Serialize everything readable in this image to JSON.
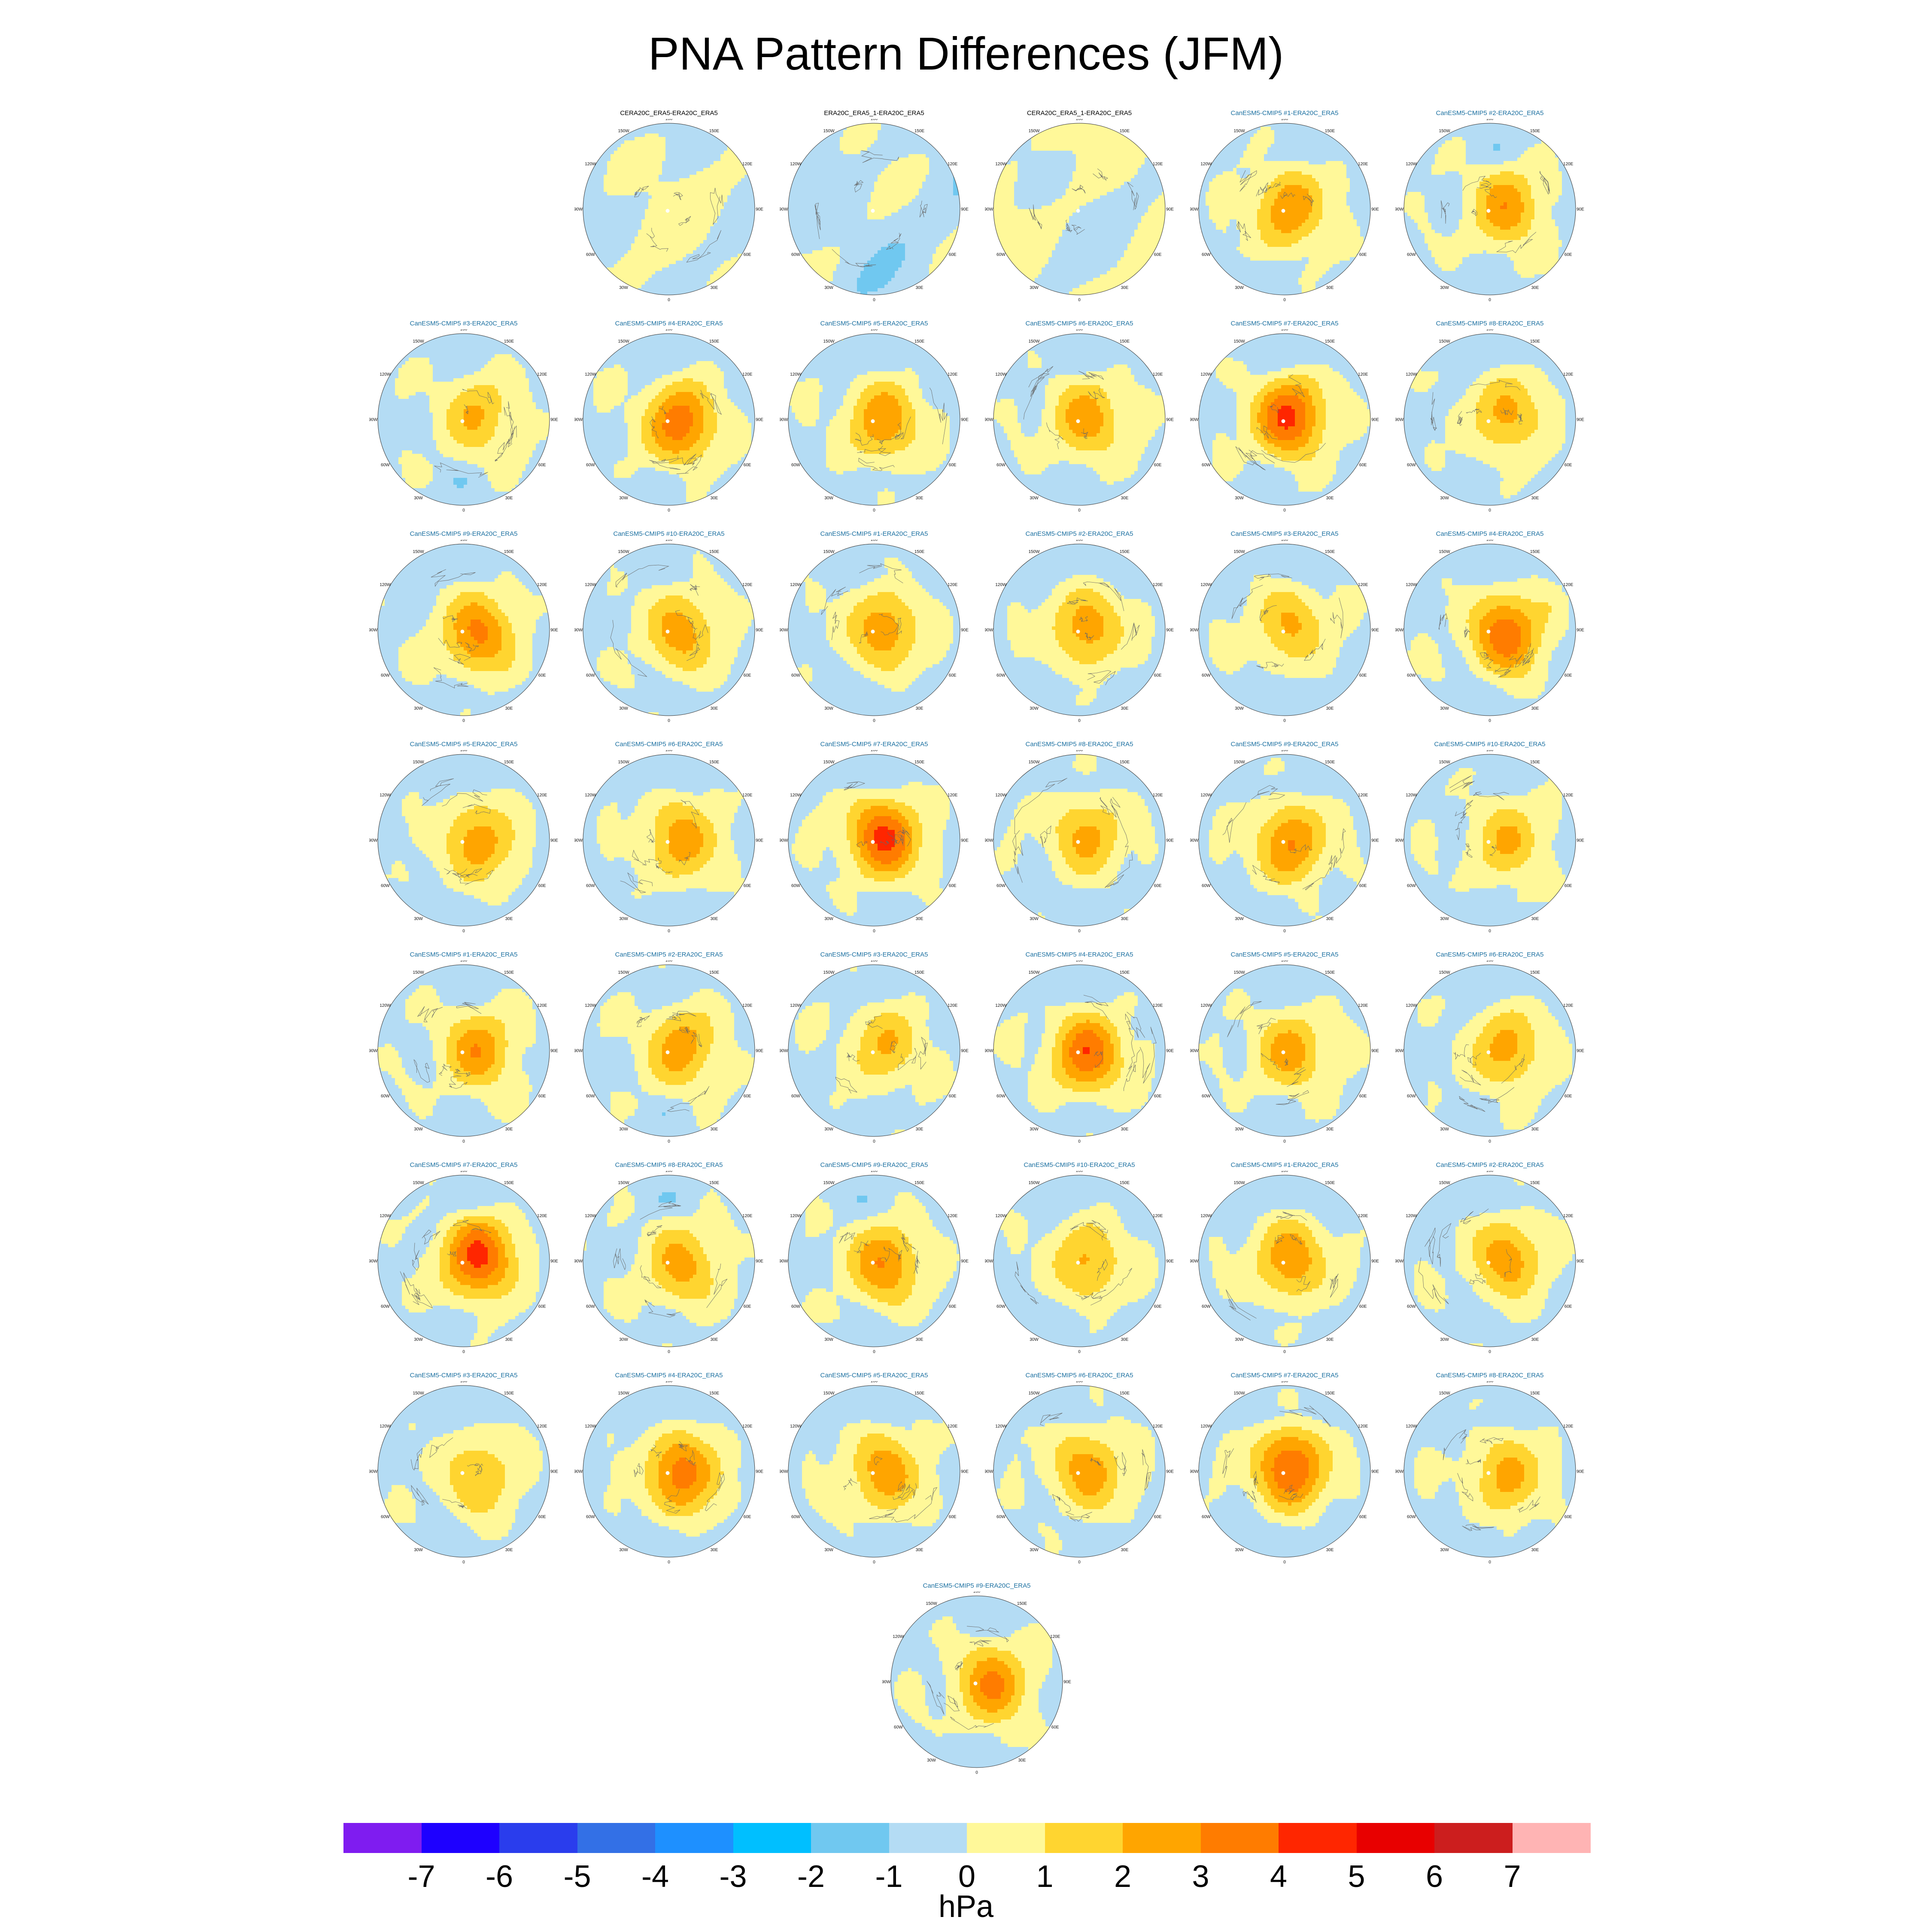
{
  "title": "PNA Pattern Differences (JFM)",
  "colors": {
    "reference_title": "#000000",
    "model_title": "#1a6fa0"
  },
  "longitude_labels": [
    "180",
    "150E",
    "120E",
    "90E",
    "60E",
    "30E",
    "0",
    "30W",
    "60W",
    "90W",
    "120W",
    "150W"
  ],
  "panels": [
    {
      "title": "CERA20C_ERA5-ERA20C_ERA5",
      "type": "reference",
      "row": 0,
      "col": 1,
      "amp": 0.4,
      "field": 0
    },
    {
      "title": "ERA20C_ERA5_1-ERA20C_ERA5",
      "type": "reference",
      "row": 0,
      "col": 2,
      "amp": 0.4,
      "field": 1
    },
    {
      "title": "CERA20C_ERA5_1-ERA20C_ERA5",
      "type": "reference",
      "row": 0,
      "col": 3,
      "amp": 0.4,
      "field": 2
    },
    {
      "title": "CanESM5-CMIP5 #1-ERA20C_ERA5",
      "type": "model",
      "row": 0,
      "col": 4,
      "amp": 3.2,
      "field": 3
    },
    {
      "title": "CanESM5-CMIP5 #2-ERA20C_ERA5",
      "type": "model",
      "row": 0,
      "col": 5,
      "amp": 3.0,
      "field": 4
    },
    {
      "title": "CanESM5-CMIP5 #3-ERA20C_ERA5",
      "type": "model",
      "row": 1,
      "col": 0,
      "amp": 2.4,
      "field": 5
    },
    {
      "title": "CanESM5-CMIP5 #4-ERA20C_ERA5",
      "type": "model",
      "row": 1,
      "col": 1,
      "amp": 4.0,
      "field": 6
    },
    {
      "title": "CanESM5-CMIP5 #5-ERA20C_ERA5",
      "type": "model",
      "row": 1,
      "col": 2,
      "amp": 3.2,
      "field": 7
    },
    {
      "title": "CanESM5-CMIP5 #6-ERA20C_ERA5",
      "type": "model",
      "row": 1,
      "col": 3,
      "amp": 2.9,
      "field": 8
    },
    {
      "title": "CanESM5-CMIP5 #7-ERA20C_ERA5",
      "type": "model",
      "row": 1,
      "col": 4,
      "amp": 4.6,
      "field": 9
    },
    {
      "title": "CanESM5-CMIP5 #8-ERA20C_ERA5",
      "type": "model",
      "row": 1,
      "col": 5,
      "amp": 2.7,
      "field": 10
    },
    {
      "title": "CanESM5-CMIP5 #9-ERA20C_ERA5",
      "type": "model",
      "row": 2,
      "col": 0,
      "amp": 3.6,
      "field": 11
    },
    {
      "title": "CanESM5-CMIP5 #10-ERA20C_ERA5",
      "type": "model",
      "row": 2,
      "col": 1,
      "amp": 2.9,
      "field": 12
    },
    {
      "title": "CanESM5-CMIP5 #1-ERA20C_ERA5",
      "type": "model",
      "row": 2,
      "col": 2,
      "amp": 3.1,
      "field": 13
    },
    {
      "title": "CanESM5-CMIP5 #2-ERA20C_ERA5",
      "type": "model",
      "row": 2,
      "col": 3,
      "amp": 3.0,
      "field": 14
    },
    {
      "title": "CanESM5-CMIP5 #3-ERA20C_ERA5",
      "type": "model",
      "row": 2,
      "col": 4,
      "amp": 2.5,
      "field": 15
    },
    {
      "title": "CanESM5-CMIP5 #4-ERA20C_ERA5",
      "type": "model",
      "row": 2,
      "col": 5,
      "amp": 4.1,
      "field": 16
    },
    {
      "title": "CanESM5-CMIP5 #5-ERA20C_ERA5",
      "type": "model",
      "row": 3,
      "col": 0,
      "amp": 3.0,
      "field": 17
    },
    {
      "title": "CanESM5-CMIP5 #6-ERA20C_ERA5",
      "type": "model",
      "row": 3,
      "col": 1,
      "amp": 3.0,
      "field": 18
    },
    {
      "title": "CanESM5-CMIP5 #7-ERA20C_ERA5",
      "type": "model",
      "row": 3,
      "col": 2,
      "amp": 4.6,
      "field": 19
    },
    {
      "title": "CanESM5-CMIP5 #8-ERA20C_ERA5",
      "type": "model",
      "row": 3,
      "col": 3,
      "amp": 2.7,
      "field": 20
    },
    {
      "title": "CanESM5-CMIP5 #9-ERA20C_ERA5",
      "type": "model",
      "row": 3,
      "col": 4,
      "amp": 3.4,
      "field": 21
    },
    {
      "title": "CanESM5-CMIP5 #10-ERA20C_ERA5",
      "type": "model",
      "row": 3,
      "col": 5,
      "amp": 2.4,
      "field": 22
    },
    {
      "title": "CanESM5-CMIP5 #1-ERA20C_ERA5",
      "type": "model",
      "row": 4,
      "col": 0,
      "amp": 3.1,
      "field": 23
    },
    {
      "title": "CanESM5-CMIP5 #2-ERA20C_ERA5",
      "type": "model",
      "row": 4,
      "col": 1,
      "amp": 3.0,
      "field": 24
    },
    {
      "title": "CanESM5-CMIP5 #3-ERA20C_ERA5",
      "type": "model",
      "row": 4,
      "col": 2,
      "amp": 2.4,
      "field": 25
    },
    {
      "title": "CanESM5-CMIP5 #4-ERA20C_ERA5",
      "type": "model",
      "row": 4,
      "col": 3,
      "amp": 4.1,
      "field": 26
    },
    {
      "title": "CanESM5-CMIP5 #5-ERA20C_ERA5",
      "type": "model",
      "row": 4,
      "col": 4,
      "amp": 2.8,
      "field": 27
    },
    {
      "title": "CanESM5-CMIP5 #6-ERA20C_ERA5",
      "type": "model",
      "row": 4,
      "col": 5,
      "amp": 2.8,
      "field": 28
    },
    {
      "title": "CanESM5-CMIP5 #7-ERA20C_ERA5",
      "type": "model",
      "row": 5,
      "col": 0,
      "amp": 4.7,
      "field": 29
    },
    {
      "title": "CanESM5-CMIP5 #8-ERA20C_ERA5",
      "type": "model",
      "row": 5,
      "col": 1,
      "amp": 2.8,
      "field": 30
    },
    {
      "title": "CanESM5-CMIP5 #9-ERA20C_ERA5",
      "type": "model",
      "row": 5,
      "col": 2,
      "amp": 3.4,
      "field": 31
    },
    {
      "title": "CanESM5-CMIP5 #10-ERA20C_ERA5",
      "type": "model",
      "row": 5,
      "col": 3,
      "amp": 2.6,
      "field": 32
    },
    {
      "title": "CanESM5-CMIP5 #1-ERA20C_ERA5",
      "type": "model",
      "row": 5,
      "col": 4,
      "amp": 3.2,
      "field": 33
    },
    {
      "title": "CanESM5-CMIP5 #2-ERA20C_ERA5",
      "type": "model",
      "row": 5,
      "col": 5,
      "amp": 3.0,
      "field": 34
    },
    {
      "title": "CanESM5-CMIP5 #3-ERA20C_ERA5",
      "type": "model",
      "row": 6,
      "col": 0,
      "amp": 2.4,
      "field": 35
    },
    {
      "title": "CanESM5-CMIP5 #4-ERA20C_ERA5",
      "type": "model",
      "row": 6,
      "col": 1,
      "amp": 4.0,
      "field": 36
    },
    {
      "title": "CanESM5-CMIP5 #5-ERA20C_ERA5",
      "type": "model",
      "row": 6,
      "col": 2,
      "amp": 3.1,
      "field": 37
    },
    {
      "title": "CanESM5-CMIP5 #6-ERA20C_ERA5",
      "type": "model",
      "row": 6,
      "col": 3,
      "amp": 3.0,
      "field": 38
    },
    {
      "title": "CanESM5-CMIP5 #7-ERA20C_ERA5",
      "type": "model",
      "row": 6,
      "col": 4,
      "amp": 4.5,
      "field": 39
    },
    {
      "title": "CanESM5-CMIP5 #8-ERA20C_ERA5",
      "type": "model",
      "row": 6,
      "col": 5,
      "amp": 2.7,
      "field": 40
    },
    {
      "title": "CanESM5-CMIP5 #9-ERA20C_ERA5",
      "type": "model",
      "row": 7,
      "col": 2.5,
      "amp": 3.5,
      "field": 41
    }
  ],
  "colorbar": {
    "colors": [
      "#7f1cf0",
      "#1e00ff",
      "#2a3ded",
      "#3370e6",
      "#1e90ff",
      "#00bfff",
      "#70c8f0",
      "#b4dcf4",
      "#fff899",
      "#ffd530",
      "#ffa500",
      "#ff7c00",
      "#ff2600",
      "#e80000",
      "#cc1e1e",
      "#ffb4b4"
    ],
    "labels": [
      "-7",
      "-6",
      "-5",
      "-4",
      "-3",
      "-2",
      "-1",
      "0",
      "1",
      "2",
      "3",
      "4",
      "5",
      "6",
      "7"
    ],
    "levels": [
      -7,
      -6,
      -5,
      -4,
      -3,
      -2,
      -1,
      0,
      1,
      2,
      3,
      4,
      5,
      6,
      7
    ],
    "units": "hPa"
  }
}
